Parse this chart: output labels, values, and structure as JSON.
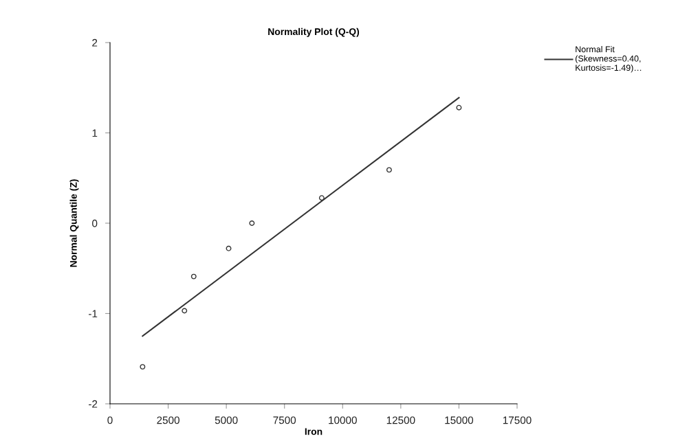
{
  "chart_data": {
    "type": "scatter",
    "title": "Normality Plot (Q-Q)",
    "xlabel": "Iron",
    "ylabel": "Normal Quantile (Z)",
    "xlim": [
      0,
      17500
    ],
    "xticks": [
      0,
      2500,
      5000,
      7500,
      10000,
      12500,
      15000,
      17500
    ],
    "ylim": [
      -2,
      2
    ],
    "yticks": [
      -2,
      -1,
      0,
      1,
      2
    ],
    "grid": false,
    "legend": "top right",
    "series": [
      {
        "marker": "circle",
        "color": "#333333",
        "x": [
          1400,
          3200,
          3600,
          5100,
          6100,
          9100,
          12000,
          15000
        ],
        "values": [
          -1.59,
          -0.97,
          -0.59,
          -0.28,
          0,
          0.28,
          0.59,
          1.28
        ]
      },
      {
        "type": "line",
        "name": "Normal Fit\n(Skewness=0.40,\nKurtosis=-1.49)…",
        "color": "#333333",
        "line_style": "solid",
        "x": [
          1400,
          15000
        ],
        "values": [
          -1.25,
          1.39
        ]
      }
    ]
  }
}
